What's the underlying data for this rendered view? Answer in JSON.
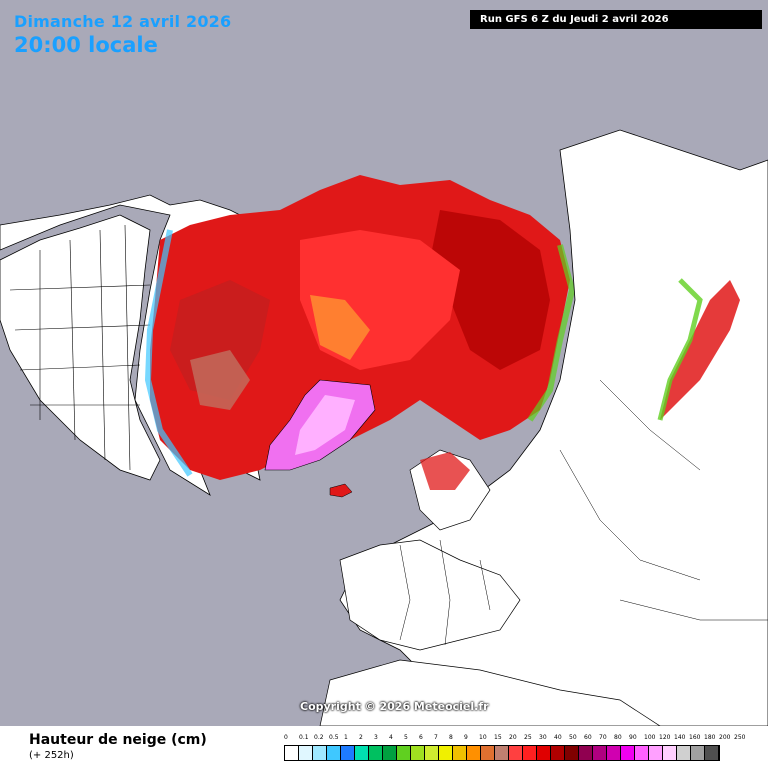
{
  "header": {
    "date_text": "Dimanche 12 avril 2026",
    "time_text": "20:00 locale",
    "run_text": "Run GFS 6 Z du Jeudi 2 avril 2026"
  },
  "map": {
    "projection_view": "North polar stereographic",
    "colors": {
      "ocean": "#a9a9b8",
      "land": "#ffffff",
      "borders": "#000000"
    }
  },
  "copyright": "Copyright © 2026 Meteociel.fr",
  "legend": {
    "title": "Hauteur de neige (cm)",
    "subtitle": "(+ 252h)",
    "scale": [
      {
        "label": "0",
        "color": "#ffffff"
      },
      {
        "label": "0.1",
        "color": "#e0f7ff"
      },
      {
        "label": "0.2",
        "color": "#9fe8ff"
      },
      {
        "label": "0.5",
        "color": "#3fc8ff"
      },
      {
        "label": "1",
        "color": "#1e7bff"
      },
      {
        "label": "2",
        "color": "#00e0b0"
      },
      {
        "label": "3",
        "color": "#00c060"
      },
      {
        "label": "4",
        "color": "#00a040"
      },
      {
        "label": "5",
        "color": "#60d020"
      },
      {
        "label": "6",
        "color": "#a0e020"
      },
      {
        "label": "7",
        "color": "#d0ec30"
      },
      {
        "label": "8",
        "color": "#f0f000"
      },
      {
        "label": "9",
        "color": "#f0c000"
      },
      {
        "label": "10",
        "color": "#ff9000"
      },
      {
        "label": "15",
        "color": "#e07030"
      },
      {
        "label": "20",
        "color": "#c08070"
      },
      {
        "label": "25",
        "color": "#ff4040"
      },
      {
        "label": "30",
        "color": "#ff2020"
      },
      {
        "label": "40",
        "color": "#e00000"
      },
      {
        "label": "50",
        "color": "#b00000"
      },
      {
        "label": "60",
        "color": "#800000"
      },
      {
        "label": "70",
        "color": "#900050"
      },
      {
        "label": "80",
        "color": "#b00080"
      },
      {
        "label": "90",
        "color": "#d000b0"
      },
      {
        "label": "100",
        "color": "#f000f0"
      },
      {
        "label": "120",
        "color": "#ff60ff"
      },
      {
        "label": "140",
        "color": "#ffa0ff"
      },
      {
        "label": "160",
        "color": "#ffd0ff"
      },
      {
        "label": "180",
        "color": "#d0d0d0"
      },
      {
        "label": "200",
        "color": "#a0a0a0"
      },
      {
        "label": "250",
        "color": "#505050"
      }
    ]
  }
}
